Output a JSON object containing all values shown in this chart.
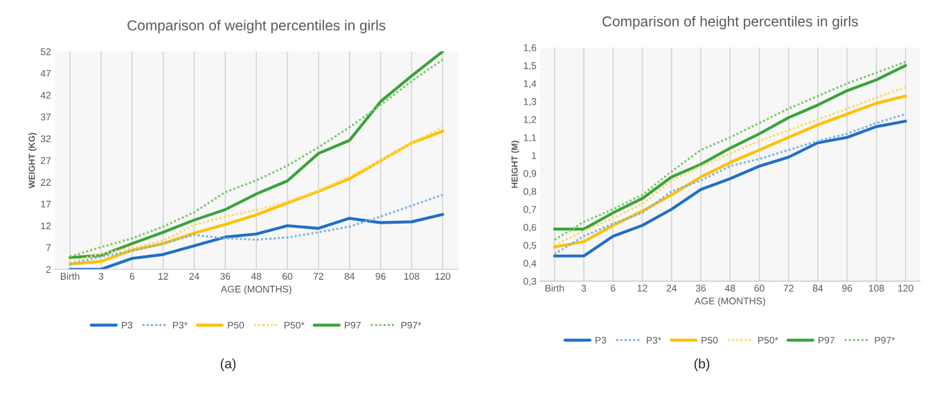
{
  "chart_data": [
    {
      "type": "line",
      "title": "Comparison of weight percentiles in girls",
      "xlabel": "AGE (MONTHS)",
      "ylabel": "WEIGHT (KG)",
      "categories": [
        "Birth",
        "3",
        "6",
        "12",
        "24",
        "36",
        "48",
        "60",
        "72",
        "84",
        "96",
        "108",
        "120"
      ],
      "ylim": [
        2,
        52
      ],
      "yticks": [
        2,
        7,
        12,
        17,
        22,
        27,
        32,
        37,
        42,
        47,
        52
      ],
      "grid": "x",
      "legend": "bottom",
      "annotations": [
        "(a)"
      ],
      "series": [
        {
          "name": "P3",
          "color": "#1f6fc5",
          "line_style": "solid",
          "values": [
            2.0,
            2.0,
            4.5,
            5.4,
            7.4,
            9.4,
            10.1,
            12.0,
            11.4,
            13.7,
            12.7,
            12.9,
            14.6
          ]
        },
        {
          "name": "P3*",
          "color": "#7fb2e5",
          "line_style": "dotted",
          "values": [
            3.2,
            4.9,
            6.2,
            7.9,
            9.9,
            9.1,
            8.8,
            9.3,
            10.5,
            11.8,
            14.1,
            16.6,
            19.1
          ]
        },
        {
          "name": "P50",
          "color": "#ffc000",
          "line_style": "solid",
          "values": [
            3.2,
            3.8,
            6.4,
            7.9,
            10.3,
            12.3,
            14.5,
            17.2,
            19.9,
            22.8,
            26.9,
            31.0,
            33.7
          ]
        },
        {
          "name": "P50*",
          "color": "#ffd966",
          "line_style": "dotted",
          "values": [
            3.6,
            5.6,
            6.9,
            8.6,
            12.2,
            14.1,
            15.6,
            17.5,
            20.1,
            23.3,
            26.9,
            31.0,
            34.6
          ]
        },
        {
          "name": "P97",
          "color": "#3aa33a",
          "line_style": "solid",
          "values": [
            4.7,
            5.2,
            7.9,
            10.5,
            13.3,
            15.7,
            19.3,
            22.3,
            28.6,
            31.6,
            40.5,
            46.4,
            52.0
          ]
        },
        {
          "name": "P97*",
          "color": "#7dc96b",
          "line_style": "dotted",
          "values": [
            4.9,
            7.1,
            9.1,
            11.8,
            15.1,
            19.7,
            22.4,
            25.8,
            30.0,
            34.6,
            39.7,
            45.2,
            50.1
          ]
        }
      ]
    },
    {
      "type": "line",
      "title": "Comparison of height percentiles in girls",
      "xlabel": "AGE (MONTHS)",
      "ylabel": "HEIGHT (M)",
      "categories": [
        "Birth",
        "3",
        "6",
        "12",
        "24",
        "36",
        "48",
        "60",
        "72",
        "84",
        "96",
        "108",
        "120"
      ],
      "ylim": [
        0.3,
        1.6
      ],
      "yticks": [
        {
          "value": 0.3,
          "label": "0,3"
        },
        {
          "value": 0.4,
          "label": "0,4"
        },
        {
          "value": 0.5,
          "label": "0,5"
        },
        {
          "value": 0.6,
          "label": "0,6"
        },
        {
          "value": 0.7,
          "label": "0,7"
        },
        {
          "value": 0.8,
          "label": "0,8"
        },
        {
          "value": 0.9,
          "label": "0,9"
        },
        1,
        {
          "value": 1.1,
          "label": "1,1"
        },
        {
          "value": 1.2,
          "label": "1,2"
        },
        {
          "value": 1.3,
          "label": "1,3"
        },
        {
          "value": 1.4,
          "label": "1,4"
        },
        {
          "value": 1.5,
          "label": "1,5"
        },
        {
          "value": 1.6,
          "label": "1,6"
        }
      ],
      "grid": "x",
      "legend": "bottom",
      "annotations": [
        "(b)"
      ],
      "series": [
        {
          "name": "P3",
          "color": "#1f6fc5",
          "line_style": "solid",
          "values": [
            0.44,
            0.44,
            0.55,
            0.61,
            0.7,
            0.81,
            0.87,
            0.94,
            0.99,
            1.07,
            1.1,
            1.16,
            1.19
          ]
        },
        {
          "name": "P3*",
          "color": "#7fb2e5",
          "line_style": "dotted",
          "values": [
            0.45,
            0.55,
            0.62,
            0.68,
            0.8,
            0.86,
            0.94,
            0.98,
            1.03,
            1.08,
            1.12,
            1.18,
            1.23
          ]
        },
        {
          "name": "P50",
          "color": "#ffc000",
          "line_style": "solid",
          "values": [
            0.49,
            0.52,
            0.61,
            0.69,
            0.78,
            0.88,
            0.96,
            1.03,
            1.1,
            1.17,
            1.23,
            1.29,
            1.33
          ]
        },
        {
          "name": "P50*",
          "color": "#ffd966",
          "line_style": "dotted",
          "values": [
            0.5,
            0.58,
            0.65,
            0.73,
            0.86,
            0.94,
            1.01,
            1.08,
            1.14,
            1.2,
            1.26,
            1.32,
            1.38
          ]
        },
        {
          "name": "P97",
          "color": "#3aa33a",
          "line_style": "solid",
          "values": [
            0.59,
            0.59,
            0.68,
            0.76,
            0.88,
            0.95,
            1.04,
            1.12,
            1.21,
            1.28,
            1.36,
            1.42,
            1.5
          ]
        },
        {
          "name": "P97*",
          "color": "#7dc96b",
          "line_style": "dotted",
          "values": [
            0.53,
            0.63,
            0.7,
            0.78,
            0.91,
            1.03,
            1.1,
            1.18,
            1.26,
            1.33,
            1.4,
            1.46,
            1.52
          ]
        }
      ]
    }
  ]
}
